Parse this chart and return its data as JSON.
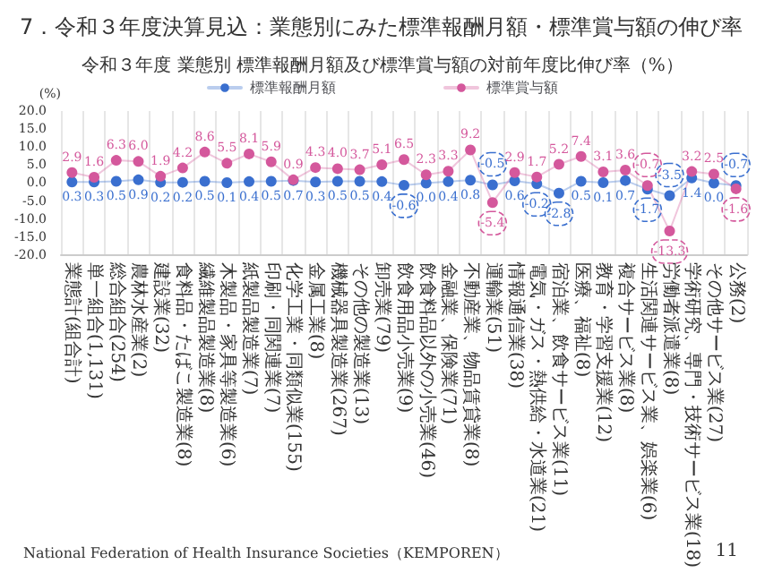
{
  "chart_data": {
    "type": "line",
    "title": "7．令和３年度決算見込：業態別にみた標準報酬月額・標準賞与額の伸び率",
    "subtitle": "令和３年度 業態別 標準報酬月額及び標準賞与額の対前年度比伸び率（%）",
    "ylabel": "(%)",
    "annotations": [
      "National Federation of Health Insurance Societies（KEMPOREN）",
      "11"
    ],
    "categories": [
      "業態計(組合計)",
      "単一組合(1,131)",
      "総合組合(254)",
      "農林水産業(2)",
      "建設業(32)",
      "食料品・たばこ製造業(8)",
      "繊維製品製造業(8)",
      "木製品・家具等製造業(6)",
      "紙製品製造業(7)",
      "印刷・同関連業(7)",
      "化学工業・同類似業(155)",
      "金属工業(8)",
      "機械器具製造業(267)",
      "その他の製造業(13)",
      "卸売業(79)",
      "飲食用品小売業(9)",
      "飲食料品以外の小売業(46)",
      "金融業、保険業(71)",
      "不動産業、物品賃貸業(8)",
      "運輸業(51)",
      "情報通信業(38)",
      "電気・ガス・熱供給・水道業(21)",
      "宿泊業、飲食サービス業(11)",
      "医療、福祉(8)",
      "教育・学習支援業(12)",
      "複合サービス業(8)",
      "生活関連サービス業、娯楽業(6)",
      "労働者派遣業(8)",
      "学術研究、専門・技術サービス業(18)",
      "その他サービス業(27)",
      "公務(2)"
    ],
    "series": [
      {
        "name": "標準報酬月額",
        "color": "#3a6fcf",
        "values": [
          0.3,
          0.3,
          0.5,
          0.9,
          0.2,
          0.2,
          0.5,
          0.1,
          0.4,
          0.5,
          0.7,
          0.3,
          0.5,
          0.5,
          0.4,
          -0.6,
          0.0,
          0.4,
          0.8,
          -0.5,
          0.6,
          -0.2,
          -2.8,
          0.5,
          0.1,
          0.7,
          -1.7,
          -3.5,
          1.4,
          0.0,
          -0.7
        ],
        "value_labels": [
          "0.3",
          "0.3",
          "0.5",
          "0.9",
          "0.2",
          "0.2",
          "0.5",
          "0.1",
          "0.4",
          "0.5",
          "0.7",
          "0.3",
          "0.5",
          "0.5",
          "0.4",
          "-0.6",
          "0.0",
          "0.4",
          "0.8",
          "-0.5",
          "0.6",
          "-0.2",
          "-2.8",
          "0.5",
          "0.1",
          "0.7",
          "-1.7",
          "-3.5",
          "1.4",
          "0.0",
          "-0.7"
        ]
      },
      {
        "name": "標準賞与額",
        "color": "#d4589c",
        "values": [
          2.9,
          1.6,
          6.3,
          6.0,
          1.9,
          4.2,
          8.6,
          5.5,
          8.1,
          5.9,
          0.9,
          4.3,
          4.0,
          3.7,
          5.1,
          6.5,
          2.3,
          3.3,
          9.2,
          -5.4,
          2.9,
          1.7,
          5.2,
          7.4,
          3.1,
          3.6,
          -0.7,
          -13.3,
          3.2,
          2.5,
          -1.6
        ],
        "value_labels": [
          "2.9",
          "1.6",
          "6.3",
          "6.0",
          "1.9",
          "4.2",
          "8.6",
          "5.5",
          "8.1",
          "5.9",
          "0.9",
          "4.3",
          "4.0",
          "3.7",
          "5.1",
          "6.5",
          "2.3",
          "3.3",
          "9.2",
          "-5.4",
          "2.9",
          "1.7",
          "5.2",
          "7.4",
          "3.1",
          "3.6",
          "-0.7",
          "-13.3",
          "3.2",
          "2.5",
          "-1.6"
        ]
      }
    ],
    "ylim": [
      -20,
      20
    ],
    "yticks": [
      {
        "value": -20,
        "label": "-20.0"
      },
      {
        "value": -15,
        "label": "-15.0"
      },
      {
        "value": -10,
        "label": "-10.0"
      },
      {
        "value": -5,
        "label": "-5.0"
      },
      {
        "value": 0,
        "label": "0.0"
      },
      {
        "value": 5,
        "label": "5.0"
      },
      {
        "value": 10,
        "label": "10.0"
      },
      {
        "value": 15,
        "label": "15.0"
      },
      {
        "value": 20,
        "label": "20.0"
      }
    ],
    "grid": "x",
    "legend": "top",
    "marker": "circle",
    "line_style": "solid"
  }
}
